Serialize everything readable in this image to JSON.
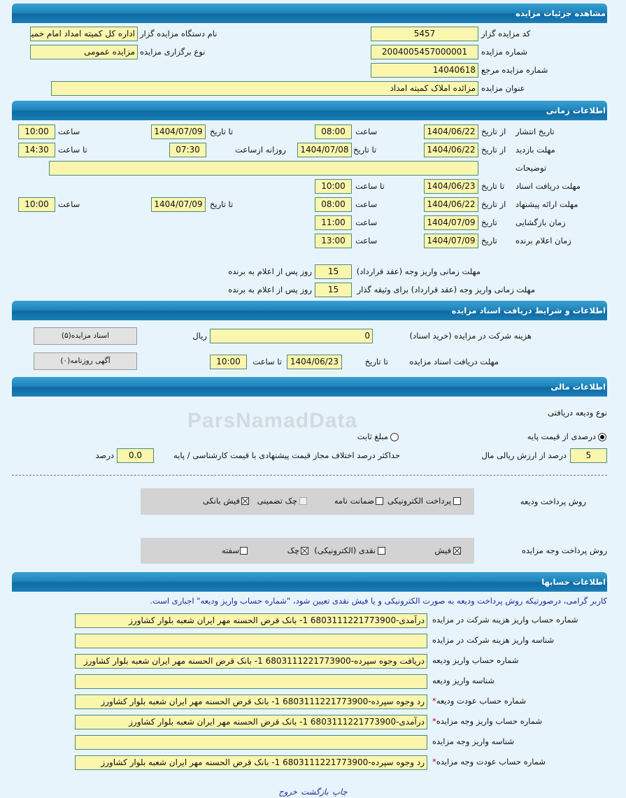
{
  "watermark": "ParsNamadData",
  "details": {
    "title": "مشاهده جزئیات مزایده",
    "code_label": "کد مزایده گزار",
    "code": "5457",
    "org_label": "نام دستگاه مزایده گزار",
    "org": "اداره کل کمیته امداد امام خمینی",
    "number_label": "شماره مزایده",
    "number": "2004005457000001",
    "type_label": "نوع برگزاری مزایده",
    "type": "مزایده عمومی",
    "ref_label": "شماره مزایده مرجع",
    "ref": "14040618",
    "subject_label": "عنوان مزایده",
    "subject": "مزائده املاک کمیته امداد"
  },
  "timing": {
    "title": "اطلاعات زمانی",
    "publish": {
      "label": "تاریخ انتشار",
      "from_label": "از تاریخ",
      "from": "1404/06/22",
      "time_label": "ساعت",
      "time": "08:00",
      "to_label": "تا تاریخ",
      "to": "1404/07/09",
      "to_time_label": "ساعت",
      "to_time": "10:00"
    },
    "visit": {
      "label": "مهلت بازدید",
      "from_label": "از تاریخ",
      "from": "1404/06/22",
      "to_label": "تا تاریخ",
      "to": "1404/07/08",
      "daily_label": "روزانه ازساعت",
      "daily_from": "07:30",
      "to_time_label": "تا ساعت",
      "to_time": "14:30"
    },
    "desc_label": "توضیحات",
    "desc": "",
    "docs": {
      "label": "مهلت دریافت اسناد",
      "to_label": "تا تاریخ",
      "to": "1404/06/23",
      "time_label": "تا ساعت",
      "time": "10:00"
    },
    "offer": {
      "label": "مهلت ارائه پیشنهاد",
      "from_label": "از تاریخ",
      "from": "1404/06/22",
      "time_label": "ساعت",
      "time": "08:00",
      "to_label": "تا تاریخ",
      "to": "1404/07/09",
      "to_time_label": "ساعت",
      "to_time": "10:00"
    },
    "opening": {
      "label": "زمان بازگشایی",
      "date_label": "تاریخ",
      "date": "1404/07/09",
      "time_label": "ساعت",
      "time": "11:00"
    },
    "winner": {
      "label": "زمان اعلام برنده",
      "date_label": "تاریخ",
      "date": "1404/07/09",
      "time_label": "ساعت",
      "time": "13:00"
    },
    "pay_deadline_label": "مهلت زمانی واریز وجه (عقد قرارداد)",
    "pay_deadline": "15",
    "pay_deadline_collateral_label": "مهلت زمانی واریز وجه (عقد قرارداد) برای وثیقه گذار",
    "pay_deadline_collateral": "15",
    "days_suffix": "روز پس از اعلام به برنده"
  },
  "docs_section": {
    "title": "اطلاعات و شرایط دریافت اسناد مزایده",
    "fee_label": "هزینه شرکت در مزایده (خرید اسناد)",
    "fee": "0",
    "currency": "ریال",
    "deadline_label": "مهلت دریافت اسناد مزایده",
    "to_label": "تا تاریخ",
    "to": "1404/06/23",
    "time_label": "تا ساعت",
    "time": "10:00",
    "docs_button": "اسناد مزایده(۵)",
    "ads_button": "آگهی روزنامه(۰)"
  },
  "finance": {
    "title": "اطلاعات مالی",
    "deposit_type_label": "نوع ودیعه دریافتی",
    "radio_percent": "درصدی از قیمت پایه",
    "radio_fixed": "مبلغ ثابت",
    "selected": "percent",
    "percent": "5",
    "percent_suffix": "درصد از ارزش ریالی مال",
    "max_diff_label": "حداکثر درصد اختلاف مجاز قیمت پیشنهادی با قیمت کارشناسی / پایه",
    "max_diff": "0.0",
    "max_diff_suffix": "درصد",
    "deposit_method_label": "روش پرداخت ودیعه",
    "deposit_methods": [
      {
        "label": "پرداخت الکترونیکی",
        "checked": false
      },
      {
        "label": "ضمانت نامه",
        "checked": false
      },
      {
        "label": "چک تضمینی",
        "checked": false,
        "disabled": true
      },
      {
        "label": "فیش بانکی",
        "checked": true
      }
    ],
    "payment_method_label": "روش پرداخت وجه مزایده",
    "payment_methods": [
      {
        "label": "فیش",
        "checked": true
      },
      {
        "label": "نقدی (الکترونیکی)",
        "checked": false
      },
      {
        "label": "چک",
        "checked": true
      },
      {
        "label": "سفته",
        "checked": false
      }
    ]
  },
  "accounts": {
    "title": "اطلاعات حسابها",
    "note": "کاربر گرامی، درصورتیکه روش پرداخت ودیعه به صورت الکترونیکی و یا فیش نقدی تعیین شود، \"شماره حساب واریز ودیعه\" اجباری است.",
    "rows": [
      {
        "label": "شماره حساب واریز هزینه شرکت در مزایده",
        "value": "درآمدی-6803111221773900 1- بانک قرض الحسنه مهر ایران شعبه بلوار کشاورز",
        "required": false
      },
      {
        "label": "شناسه واریز هزینه شرکت در مزایده",
        "value": "",
        "required": false
      },
      {
        "label": "شماره حساب واریز ودیعه",
        "value": "دریافت وجوه سپرده-6803111221773900 1- بانک قرض الحسنه مهر ایران شعبه بلوار کشاورز",
        "required": false
      },
      {
        "label": "شناسه واریز ودیعه",
        "value": "",
        "required": false
      },
      {
        "label": "شماره حساب عودت ودیعه",
        "value": "رد وجوه سپرده-6803111221773900 1- بانک قرض الحسنه مهر ایران شعبه بلوار کشاورز",
        "required": true
      },
      {
        "label": "شماره حساب واریز وجه مزایده",
        "value": "درآمدی-6803111221773900 1- بانک قرض الحسنه مهر ایران شعبه بلوار کشاورز",
        "required": true
      },
      {
        "label": "شناسه واریز وجه مزایده",
        "value": "",
        "required": false
      },
      {
        "label": "شماره حساب عودت وجه مزایده",
        "value": "رد وجوه سپرده-6803111221773900 1- بانک قرض الحسنه مهر ایران شعبه بلوار کشاورز",
        "required": true
      }
    ]
  },
  "footer": {
    "print": "چاپ",
    "back": "بازگشت",
    "exit": "خروج"
  },
  "colors": {
    "header": "#1f86bd",
    "field": "#fbf6ad",
    "background": "#e8f4fc",
    "link": "#1a2a9a"
  }
}
